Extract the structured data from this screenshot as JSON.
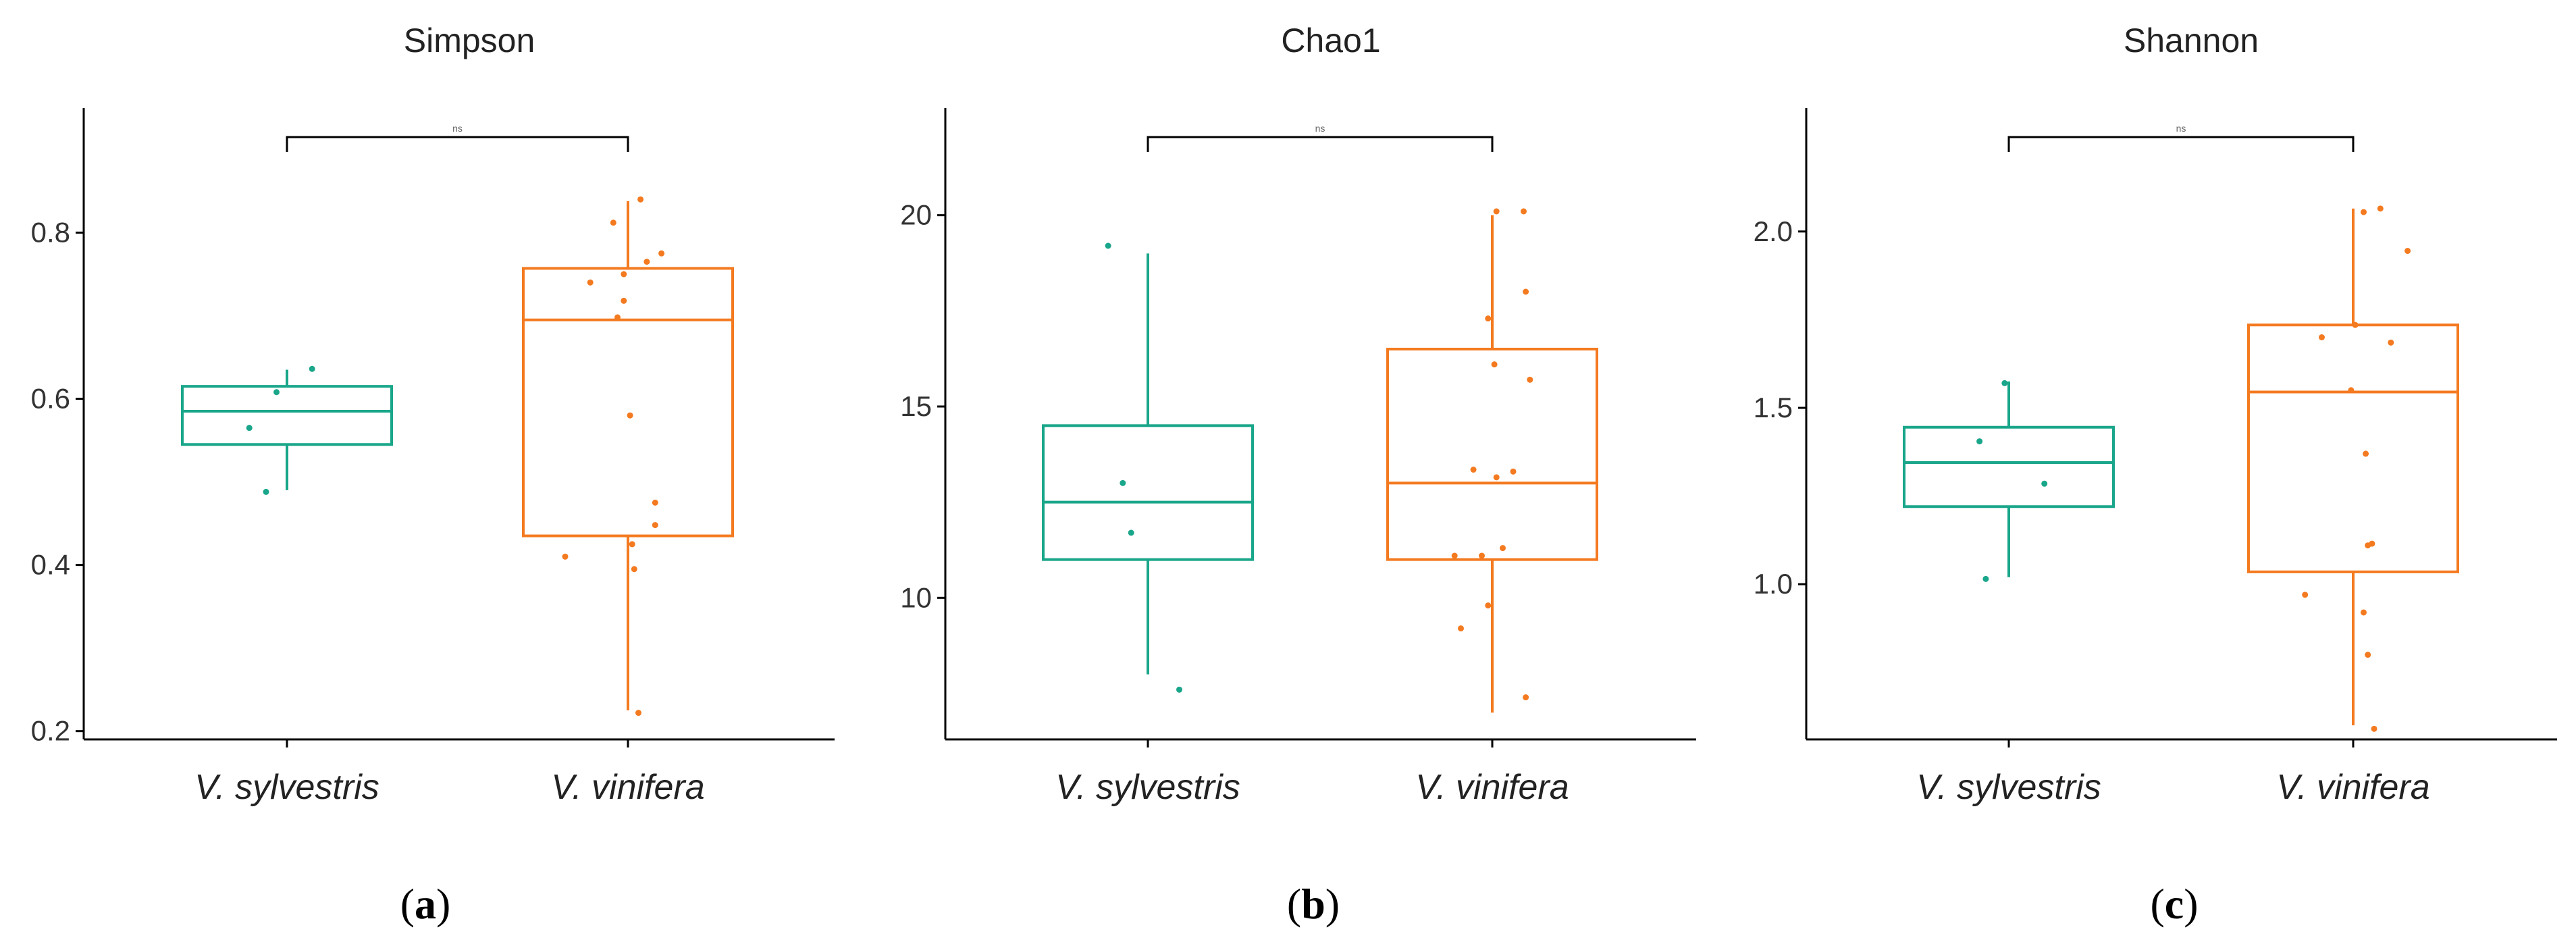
{
  "colors": {
    "V. sylvestris": "#1aa68a",
    "V. vinifera": "#f47a20",
    "axis": "#000000",
    "bracket": "#000000"
  },
  "chart_data": [
    {
      "type": "box",
      "title": "Simpson",
      "caption_letter": "a",
      "categories": [
        "V. sylvestris",
        "V. vinifera"
      ],
      "ylim": [
        0.19,
        0.95
      ],
      "yticks": [
        0.2,
        0.4,
        0.6,
        0.8
      ],
      "ytick_labels": [
        "0.2",
        "0.4",
        "0.6",
        "0.8"
      ],
      "significance": "ns",
      "boxes": [
        {
          "name": "V. sylvestris",
          "whisker_low": 0.49,
          "q1": 0.545,
          "median": 0.585,
          "q3": 0.615,
          "whisker_high": 0.635,
          "points": [
            [
              -0.1,
              0.488
            ],
            [
              -0.18,
              0.565
            ],
            [
              -0.05,
              0.608
            ],
            [
              0.12,
              0.636
            ]
          ]
        },
        {
          "name": "V. vinifera",
          "whisker_low": 0.225,
          "q1": 0.435,
          "median": 0.695,
          "q3": 0.757,
          "whisker_high": 0.838,
          "points": [
            [
              0.05,
              0.222
            ],
            [
              0.03,
              0.395
            ],
            [
              -0.3,
              0.41
            ],
            [
              0.02,
              0.425
            ],
            [
              0.13,
              0.448
            ],
            [
              0.13,
              0.475
            ],
            [
              0.01,
              0.58
            ],
            [
              -0.18,
              0.74
            ],
            [
              -0.05,
              0.698
            ],
            [
              -0.02,
              0.718
            ],
            [
              -0.02,
              0.75
            ],
            [
              0.09,
              0.765
            ],
            [
              0.16,
              0.775
            ],
            [
              -0.07,
              0.812
            ],
            [
              0.06,
              0.84
            ]
          ]
        }
      ]
    },
    {
      "type": "box",
      "title": "Chao1",
      "caption_letter": "b",
      "categories": [
        "V. sylvestris",
        "V. vinifera"
      ],
      "ylim": [
        6.3,
        22.8
      ],
      "yticks": [
        10,
        15,
        20
      ],
      "ytick_labels": [
        "10",
        "15",
        "20"
      ],
      "significance": "ns",
      "boxes": [
        {
          "name": "V. sylvestris",
          "whisker_low": 8.0,
          "q1": 11.0,
          "median": 12.5,
          "q3": 14.5,
          "whisker_high": 19.0,
          "points": [
            [
              0.15,
              7.6
            ],
            [
              -0.08,
              11.7
            ],
            [
              -0.12,
              13.0
            ],
            [
              -0.19,
              19.2
            ]
          ]
        },
        {
          "name": "V. vinifera",
          "whisker_low": 7.0,
          "q1": 11.0,
          "median": 13.0,
          "q3": 16.5,
          "whisker_high": 20.0,
          "points": [
            [
              -0.15,
              9.2
            ],
            [
              -0.02,
              9.8
            ],
            [
              0.16,
              7.4
            ],
            [
              -0.18,
              11.1
            ],
            [
              -0.05,
              11.1
            ],
            [
              0.05,
              11.3
            ],
            [
              0.1,
              13.3
            ],
            [
              0.02,
              13.15
            ],
            [
              -0.09,
              13.35
            ],
            [
              0.18,
              15.7
            ],
            [
              0.16,
              18.0
            ],
            [
              0.01,
              16.1
            ],
            [
              -0.02,
              17.3
            ],
            [
              0.02,
              20.1
            ],
            [
              0.15,
              20.1
            ]
          ]
        }
      ]
    },
    {
      "type": "box",
      "title": "Shannon",
      "caption_letter": "c",
      "categories": [
        "V. sylvestris",
        "V. vinifera"
      ],
      "ylim": [
        0.56,
        2.35
      ],
      "yticks": [
        1.0,
        1.5,
        2.0
      ],
      "ytick_labels": [
        "1.0",
        "1.5",
        "2.0"
      ],
      "significance": "ns",
      "boxes": [
        {
          "name": "V. sylvestris",
          "whisker_low": 1.02,
          "q1": 1.22,
          "median": 1.345,
          "q3": 1.445,
          "whisker_high": 1.575,
          "points": [
            [
              -0.11,
              1.015
            ],
            [
              0.17,
              1.285
            ],
            [
              -0.14,
              1.405
            ],
            [
              -0.02,
              1.57
            ]
          ]
        },
        {
          "name": "V. vinifera",
          "whisker_low": 0.6,
          "q1": 1.035,
          "median": 1.545,
          "q3": 1.735,
          "whisker_high": 2.065,
          "points": [
            [
              0.1,
              0.59
            ],
            [
              0.07,
              0.8
            ],
            [
              0.05,
              0.92
            ],
            [
              -0.23,
              0.97
            ],
            [
              0.09,
              1.115
            ],
            [
              0.07,
              1.11
            ],
            [
              0.06,
              1.37
            ],
            [
              -0.01,
              1.55
            ],
            [
              -0.15,
              1.7
            ],
            [
              0.01,
              1.735
            ],
            [
              0.18,
              1.685
            ],
            [
              0.26,
              1.945
            ],
            [
              0.13,
              2.065
            ],
            [
              0.05,
              2.055
            ]
          ]
        }
      ]
    }
  ]
}
